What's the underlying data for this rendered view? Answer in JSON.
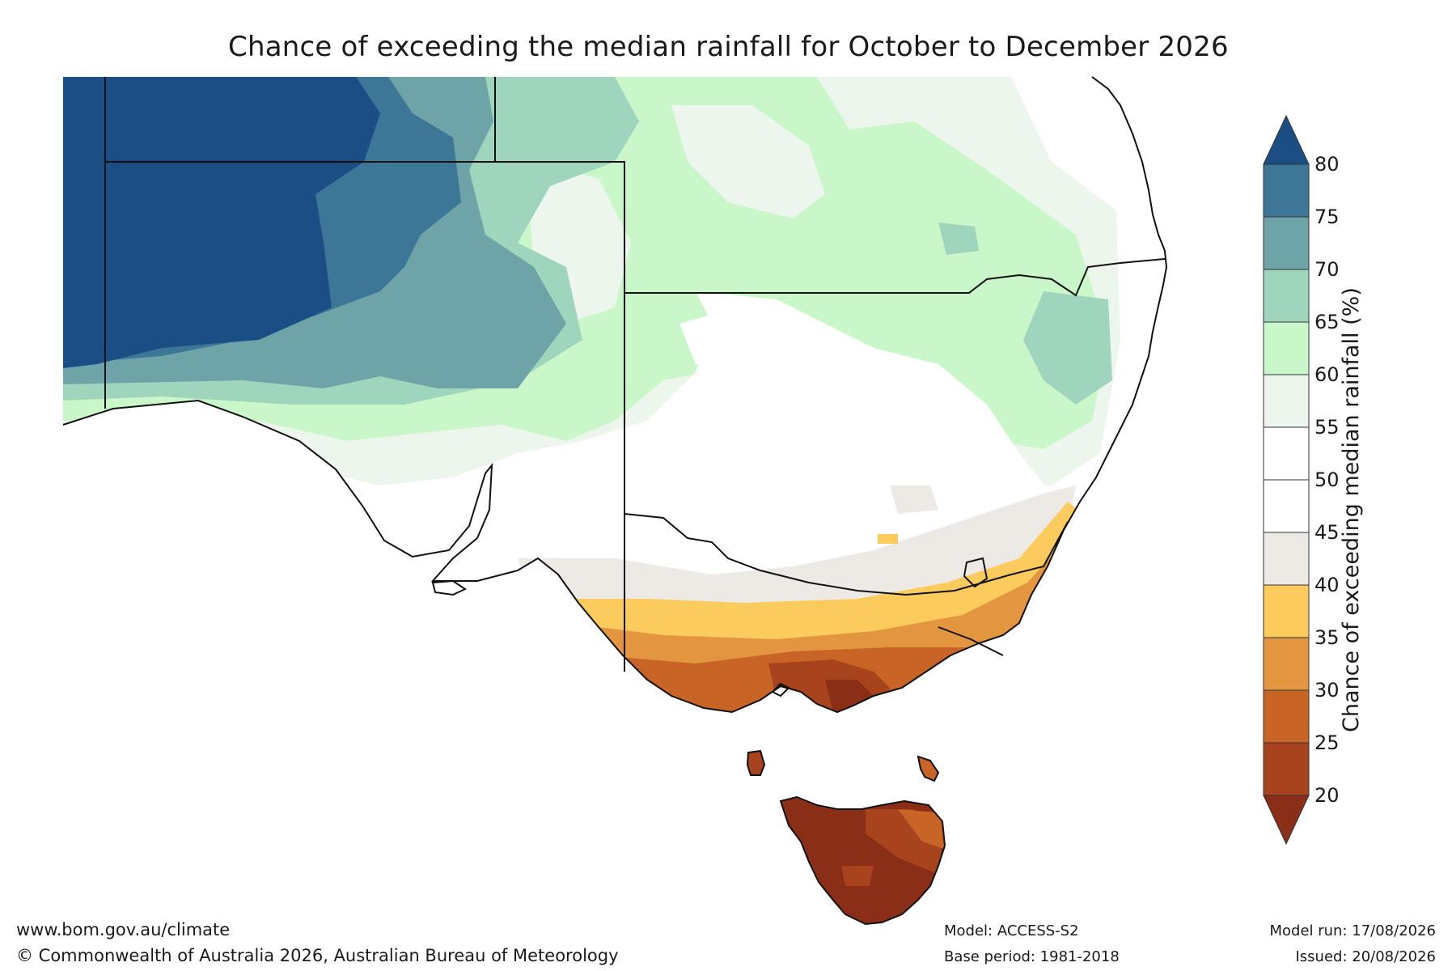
{
  "title": "Chance of exceeding the median rainfall for October to December 2026",
  "colorbar": {
    "label": "Chance of exceeding median rainfall (%)",
    "ticks": [
      "80",
      "75",
      "70",
      "65",
      "60",
      "55",
      "50",
      "45",
      "40",
      "35",
      "30",
      "25",
      "20"
    ],
    "bands": [
      {
        "range": "75-80",
        "color": "#1a4e85"
      },
      {
        "range": "70-75",
        "color": "#3d7797"
      },
      {
        "range": "65-70",
        "color": "#6ea3a8"
      },
      {
        "range": "60-65",
        "color": "#9fd5bd"
      },
      {
        "range": "55-60",
        "color": "#caf7c9"
      },
      {
        "range": "50-55",
        "color": "#ecf6ec"
      },
      {
        "range": "45-50",
        "color": "#ffffff"
      },
      {
        "range": "40-45",
        "color": "#ede9e4"
      },
      {
        "range": "35-40",
        "color": "#fccb5e"
      },
      {
        "range": "30-35",
        "color": "#e3953f"
      },
      {
        "range": "25-30",
        "color": "#c96427"
      },
      {
        "range": "20-25",
        "color": "#a8441d"
      },
      {
        "range": "<20",
        "color": "#8b2e17"
      }
    ]
  },
  "footer": {
    "website": "www.bom.gov.au/climate",
    "copyright": "© Commonwealth of Australia 2026, Australian Bureau of Meteorology",
    "model": "Model: ACCESS-S2",
    "base_period": "Base period: 1981-2018",
    "model_run": "Model run: 17/08/2026",
    "issued": "Issued: 20/08/2026"
  }
}
